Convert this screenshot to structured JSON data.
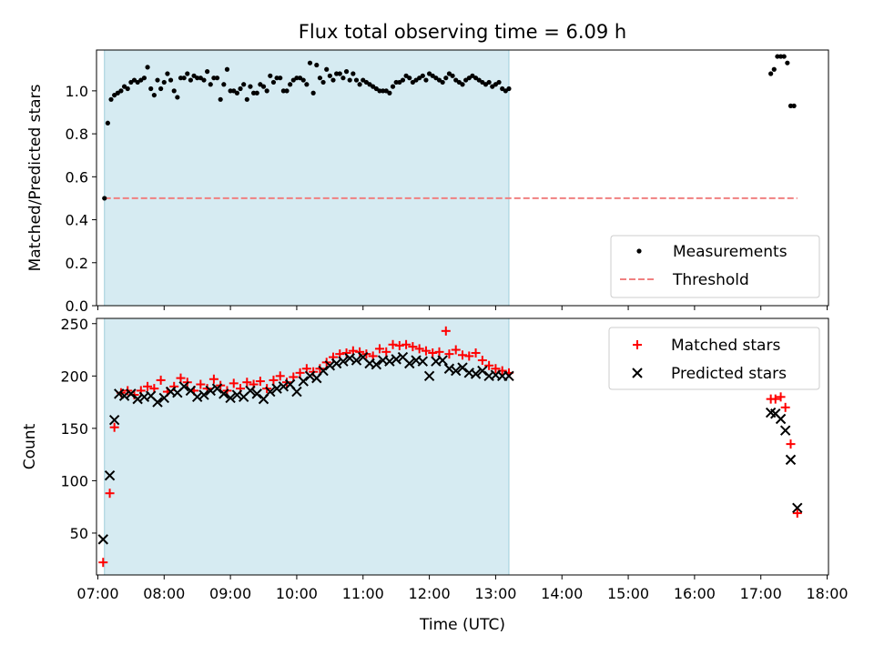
{
  "chart_data": [
    {
      "type": "scatter",
      "title": "Flux total observing time = 6.09 h",
      "ylabel": "Matched/Predicted stars",
      "xlabel": "",
      "ylim": [
        0,
        1.19
      ],
      "xlim_hours": [
        6.98,
        18.02
      ],
      "yticks": [
        0.0,
        0.2,
        0.4,
        0.6,
        0.8,
        1.0
      ],
      "ytick_labels": [
        "0.0",
        "0.2",
        "0.4",
        "0.6",
        "0.8",
        "1.0"
      ],
      "shaded_region_hours": [
        7.1,
        13.2
      ],
      "shade_color": "#add8e6",
      "legend_location": "lower right",
      "series": [
        {
          "name": "Measurements",
          "marker": "dot",
          "color": "#000000",
          "x_hours": [
            7.1,
            7.15,
            7.2,
            7.25,
            7.3,
            7.35,
            7.4,
            7.45,
            7.5,
            7.55,
            7.6,
            7.65,
            7.7,
            7.75,
            7.8,
            7.85,
            7.9,
            7.95,
            8.0,
            8.05,
            8.1,
            8.15,
            8.2,
            8.25,
            8.3,
            8.35,
            8.4,
            8.45,
            8.5,
            8.55,
            8.6,
            8.65,
            8.7,
            8.75,
            8.8,
            8.85,
            8.9,
            8.95,
            9.0,
            9.05,
            9.1,
            9.15,
            9.2,
            9.25,
            9.3,
            9.35,
            9.4,
            9.45,
            9.5,
            9.55,
            9.6,
            9.65,
            9.7,
            9.75,
            9.8,
            9.85,
            9.9,
            9.95,
            10.0,
            10.05,
            10.1,
            10.15,
            10.2,
            10.25,
            10.3,
            10.35,
            10.4,
            10.45,
            10.5,
            10.55,
            10.6,
            10.65,
            10.7,
            10.75,
            10.8,
            10.85,
            10.9,
            10.95,
            11.0,
            11.05,
            11.1,
            11.15,
            11.2,
            11.25,
            11.3,
            11.35,
            11.4,
            11.45,
            11.5,
            11.55,
            11.6,
            11.65,
            11.7,
            11.75,
            11.8,
            11.85,
            11.9,
            11.95,
            12.0,
            12.05,
            12.1,
            12.15,
            12.2,
            12.25,
            12.3,
            12.35,
            12.4,
            12.45,
            12.5,
            12.55,
            12.6,
            12.65,
            12.7,
            12.75,
            12.8,
            12.85,
            12.9,
            12.95,
            13.0,
            13.05,
            13.1,
            13.15,
            13.2,
            17.15,
            17.2,
            17.25,
            17.3,
            17.35,
            17.4,
            17.45,
            17.5
          ],
          "y": [
            0.5,
            0.85,
            0.96,
            0.98,
            0.99,
            1.0,
            1.02,
            1.01,
            1.04,
            1.05,
            1.04,
            1.05,
            1.06,
            1.11,
            1.01,
            0.98,
            1.05,
            1.01,
            1.04,
            1.08,
            1.05,
            1.0,
            0.97,
            1.06,
            1.06,
            1.08,
            1.05,
            1.07,
            1.06,
            1.06,
            1.05,
            1.09,
            1.03,
            1.06,
            1.06,
            0.96,
            1.03,
            1.1,
            1.0,
            1.0,
            0.99,
            1.01,
            1.03,
            0.96,
            1.02,
            0.99,
            0.99,
            1.03,
            1.02,
            1.0,
            1.07,
            1.04,
            1.06,
            1.06,
            1.0,
            1.0,
            1.03,
            1.05,
            1.06,
            1.06,
            1.05,
            1.03,
            1.13,
            0.99,
            1.12,
            1.06,
            1.04,
            1.1,
            1.07,
            1.05,
            1.08,
            1.08,
            1.06,
            1.09,
            1.05,
            1.08,
            1.05,
            1.03,
            1.05,
            1.04,
            1.03,
            1.02,
            1.01,
            1.0,
            1.0,
            1.0,
            0.99,
            1.02,
            1.04,
            1.04,
            1.05,
            1.07,
            1.06,
            1.04,
            1.05,
            1.06,
            1.07,
            1.05,
            1.08,
            1.07,
            1.06,
            1.05,
            1.04,
            1.06,
            1.08,
            1.07,
            1.05,
            1.04,
            1.03,
            1.05,
            1.06,
            1.07,
            1.06,
            1.05,
            1.04,
            1.03,
            1.04,
            1.02,
            1.03,
            1.04,
            1.01,
            1.0,
            1.01,
            1.08,
            1.1,
            1.16,
            1.16,
            1.16,
            1.13,
            0.93,
            0.93
          ],
          "y_note_trim": true
        },
        {
          "name": "Threshold",
          "style": "dashed",
          "color": "#f08080",
          "x_hours": [
            7.1,
            17.55
          ],
          "y": [
            0.5,
            0.5
          ]
        }
      ]
    },
    {
      "type": "scatter",
      "title": "",
      "ylabel": "Count",
      "xlabel": "Time (UTC)",
      "ylim": [
        10,
        255
      ],
      "xlim_hours": [
        6.98,
        18.02
      ],
      "yticks": [
        50,
        100,
        150,
        200,
        250
      ],
      "ytick_labels": [
        "50",
        "100",
        "150",
        "200",
        "250"
      ],
      "xticks_hours": [
        7,
        8,
        9,
        10,
        11,
        12,
        13,
        14,
        15,
        16,
        17,
        18
      ],
      "xtick_labels": [
        "07:00",
        "08:00",
        "09:00",
        "10:00",
        "11:00",
        "12:00",
        "13:00",
        "14:00",
        "15:00",
        "16:00",
        "17:00",
        "18:00"
      ],
      "shaded_region_hours": [
        7.1,
        13.2
      ],
      "shade_color": "#add8e6",
      "legend_location": "upper right",
      "series": [
        {
          "name": "Matched stars",
          "marker": "plus",
          "color": "#ff0000",
          "x_hours": [
            7.08,
            7.18,
            7.25,
            7.35,
            7.45,
            7.55,
            7.65,
            7.75,
            7.85,
            7.95,
            8.05,
            8.15,
            8.25,
            8.35,
            8.45,
            8.55,
            8.65,
            8.75,
            8.85,
            8.95,
            9.05,
            9.15,
            9.25,
            9.35,
            9.45,
            9.55,
            9.65,
            9.75,
            9.85,
            9.95,
            10.05,
            10.15,
            10.25,
            10.35,
            10.45,
            10.55,
            10.65,
            10.75,
            10.85,
            10.95,
            11.05,
            11.15,
            11.25,
            11.35,
            11.45,
            11.55,
            11.65,
            11.75,
            11.85,
            11.95,
            12.05,
            12.15,
            12.25,
            12.3,
            12.4,
            12.5,
            12.6,
            12.7,
            12.8,
            12.9,
            13.0,
            13.1,
            13.2,
            17.15,
            17.22,
            17.3,
            17.37,
            17.45,
            17.55
          ],
          "y": [
            22,
            88,
            151,
            184,
            186,
            182,
            186,
            190,
            188,
            196,
            185,
            190,
            198,
            194,
            186,
            192,
            188,
            197,
            191,
            186,
            193,
            188,
            194,
            192,
            195,
            188,
            196,
            200,
            194,
            199,
            203,
            207,
            204,
            207,
            213,
            218,
            221,
            222,
            224,
            223,
            221,
            219,
            226,
            223,
            230,
            229,
            230,
            228,
            226,
            224,
            222,
            223,
            243,
            221,
            225,
            220,
            219,
            222,
            215,
            210,
            207,
            205,
            203,
            178,
            178,
            180,
            170,
            135,
            69
          ]
        },
        {
          "name": "Predicted stars",
          "marker": "x",
          "color": "#000000",
          "x_hours": [
            7.08,
            7.18,
            7.25,
            7.32,
            7.4,
            7.5,
            7.6,
            7.7,
            7.8,
            7.9,
            8.0,
            8.1,
            8.2,
            8.3,
            8.4,
            8.5,
            8.6,
            8.7,
            8.8,
            8.9,
            9.0,
            9.1,
            9.2,
            9.3,
            9.4,
            9.5,
            9.6,
            9.7,
            9.8,
            9.9,
            10.0,
            10.1,
            10.2,
            10.3,
            10.4,
            10.5,
            10.6,
            10.7,
            10.8,
            10.9,
            11.0,
            11.1,
            11.2,
            11.3,
            11.4,
            11.5,
            11.6,
            11.7,
            11.8,
            11.9,
            12.0,
            12.1,
            12.2,
            12.3,
            12.4,
            12.5,
            12.6,
            12.7,
            12.8,
            12.9,
            13.0,
            13.1,
            13.2,
            17.15,
            17.22,
            17.3,
            17.37,
            17.45,
            17.55
          ],
          "y": [
            44,
            105,
            158,
            183,
            181,
            183,
            178,
            180,
            181,
            175,
            179,
            185,
            184,
            190,
            186,
            180,
            182,
            186,
            188,
            183,
            179,
            182,
            180,
            186,
            183,
            178,
            185,
            188,
            190,
            192,
            185,
            195,
            200,
            198,
            205,
            210,
            212,
            214,
            217,
            215,
            218,
            212,
            211,
            215,
            214,
            216,
            218,
            212,
            215,
            214,
            200,
            214,
            215,
            207,
            205,
            208,
            203,
            202,
            205,
            200,
            201,
            200,
            200,
            165,
            164,
            159,
            148,
            120,
            74
          ]
        }
      ]
    }
  ]
}
